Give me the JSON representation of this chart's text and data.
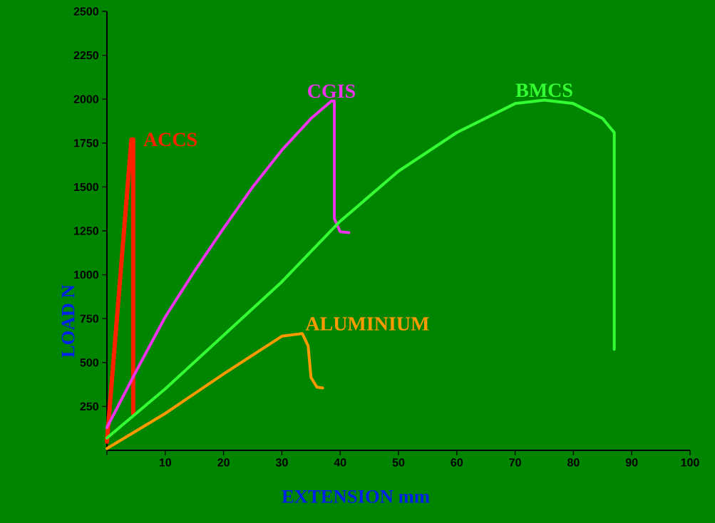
{
  "chart_data": {
    "type": "line",
    "xlabel": "EXTENSION  mm",
    "ylabel": "LOAD  N",
    "xlim": [
      0,
      100
    ],
    "ylim": [
      0,
      2500
    ],
    "xticks": [
      {
        "value": 0,
        "label": null
      },
      10,
      20,
      30,
      40,
      50,
      60,
      70,
      80,
      90,
      100
    ],
    "yticks": [
      250,
      500,
      750,
      1000,
      1250,
      1500,
      1750,
      2000,
      2250,
      2500
    ],
    "grid": false,
    "legend": false,
    "marker": "none",
    "line_style": "solid",
    "series": [
      {
        "name": "ACCS",
        "color": "#ff2200",
        "x": [
          0,
          4.2,
          4.5,
          4.5
        ],
        "values": [
          50,
          1770,
          1770,
          210
        ]
      },
      {
        "name": "CGIS",
        "color": "#ee33ee",
        "x": [
          0,
          5,
          10,
          15,
          20,
          25,
          30,
          35,
          38.5,
          39,
          39,
          40,
          41.5
        ],
        "values": [
          130,
          450,
          760,
          1020,
          1265,
          1500,
          1710,
          1890,
          1990,
          1990,
          1320,
          1245,
          1240
        ]
      },
      {
        "name": "BMCS",
        "color": "#33ff33",
        "x": [
          0,
          10,
          20,
          30,
          40,
          50,
          60,
          70,
          75,
          80,
          85,
          87,
          87
        ],
        "values": [
          70,
          350,
          655,
          960,
          1305,
          1590,
          1810,
          1975,
          1995,
          1975,
          1890,
          1810,
          575
        ]
      },
      {
        "name": "ALUMINIUM",
        "color": "#ff9900",
        "x": [
          0,
          10,
          20,
          30,
          33.5,
          34.5,
          35,
          36,
          37
        ],
        "values": [
          10,
          210,
          435,
          650,
          665,
          595,
          415,
          360,
          355
        ]
      }
    ]
  }
}
